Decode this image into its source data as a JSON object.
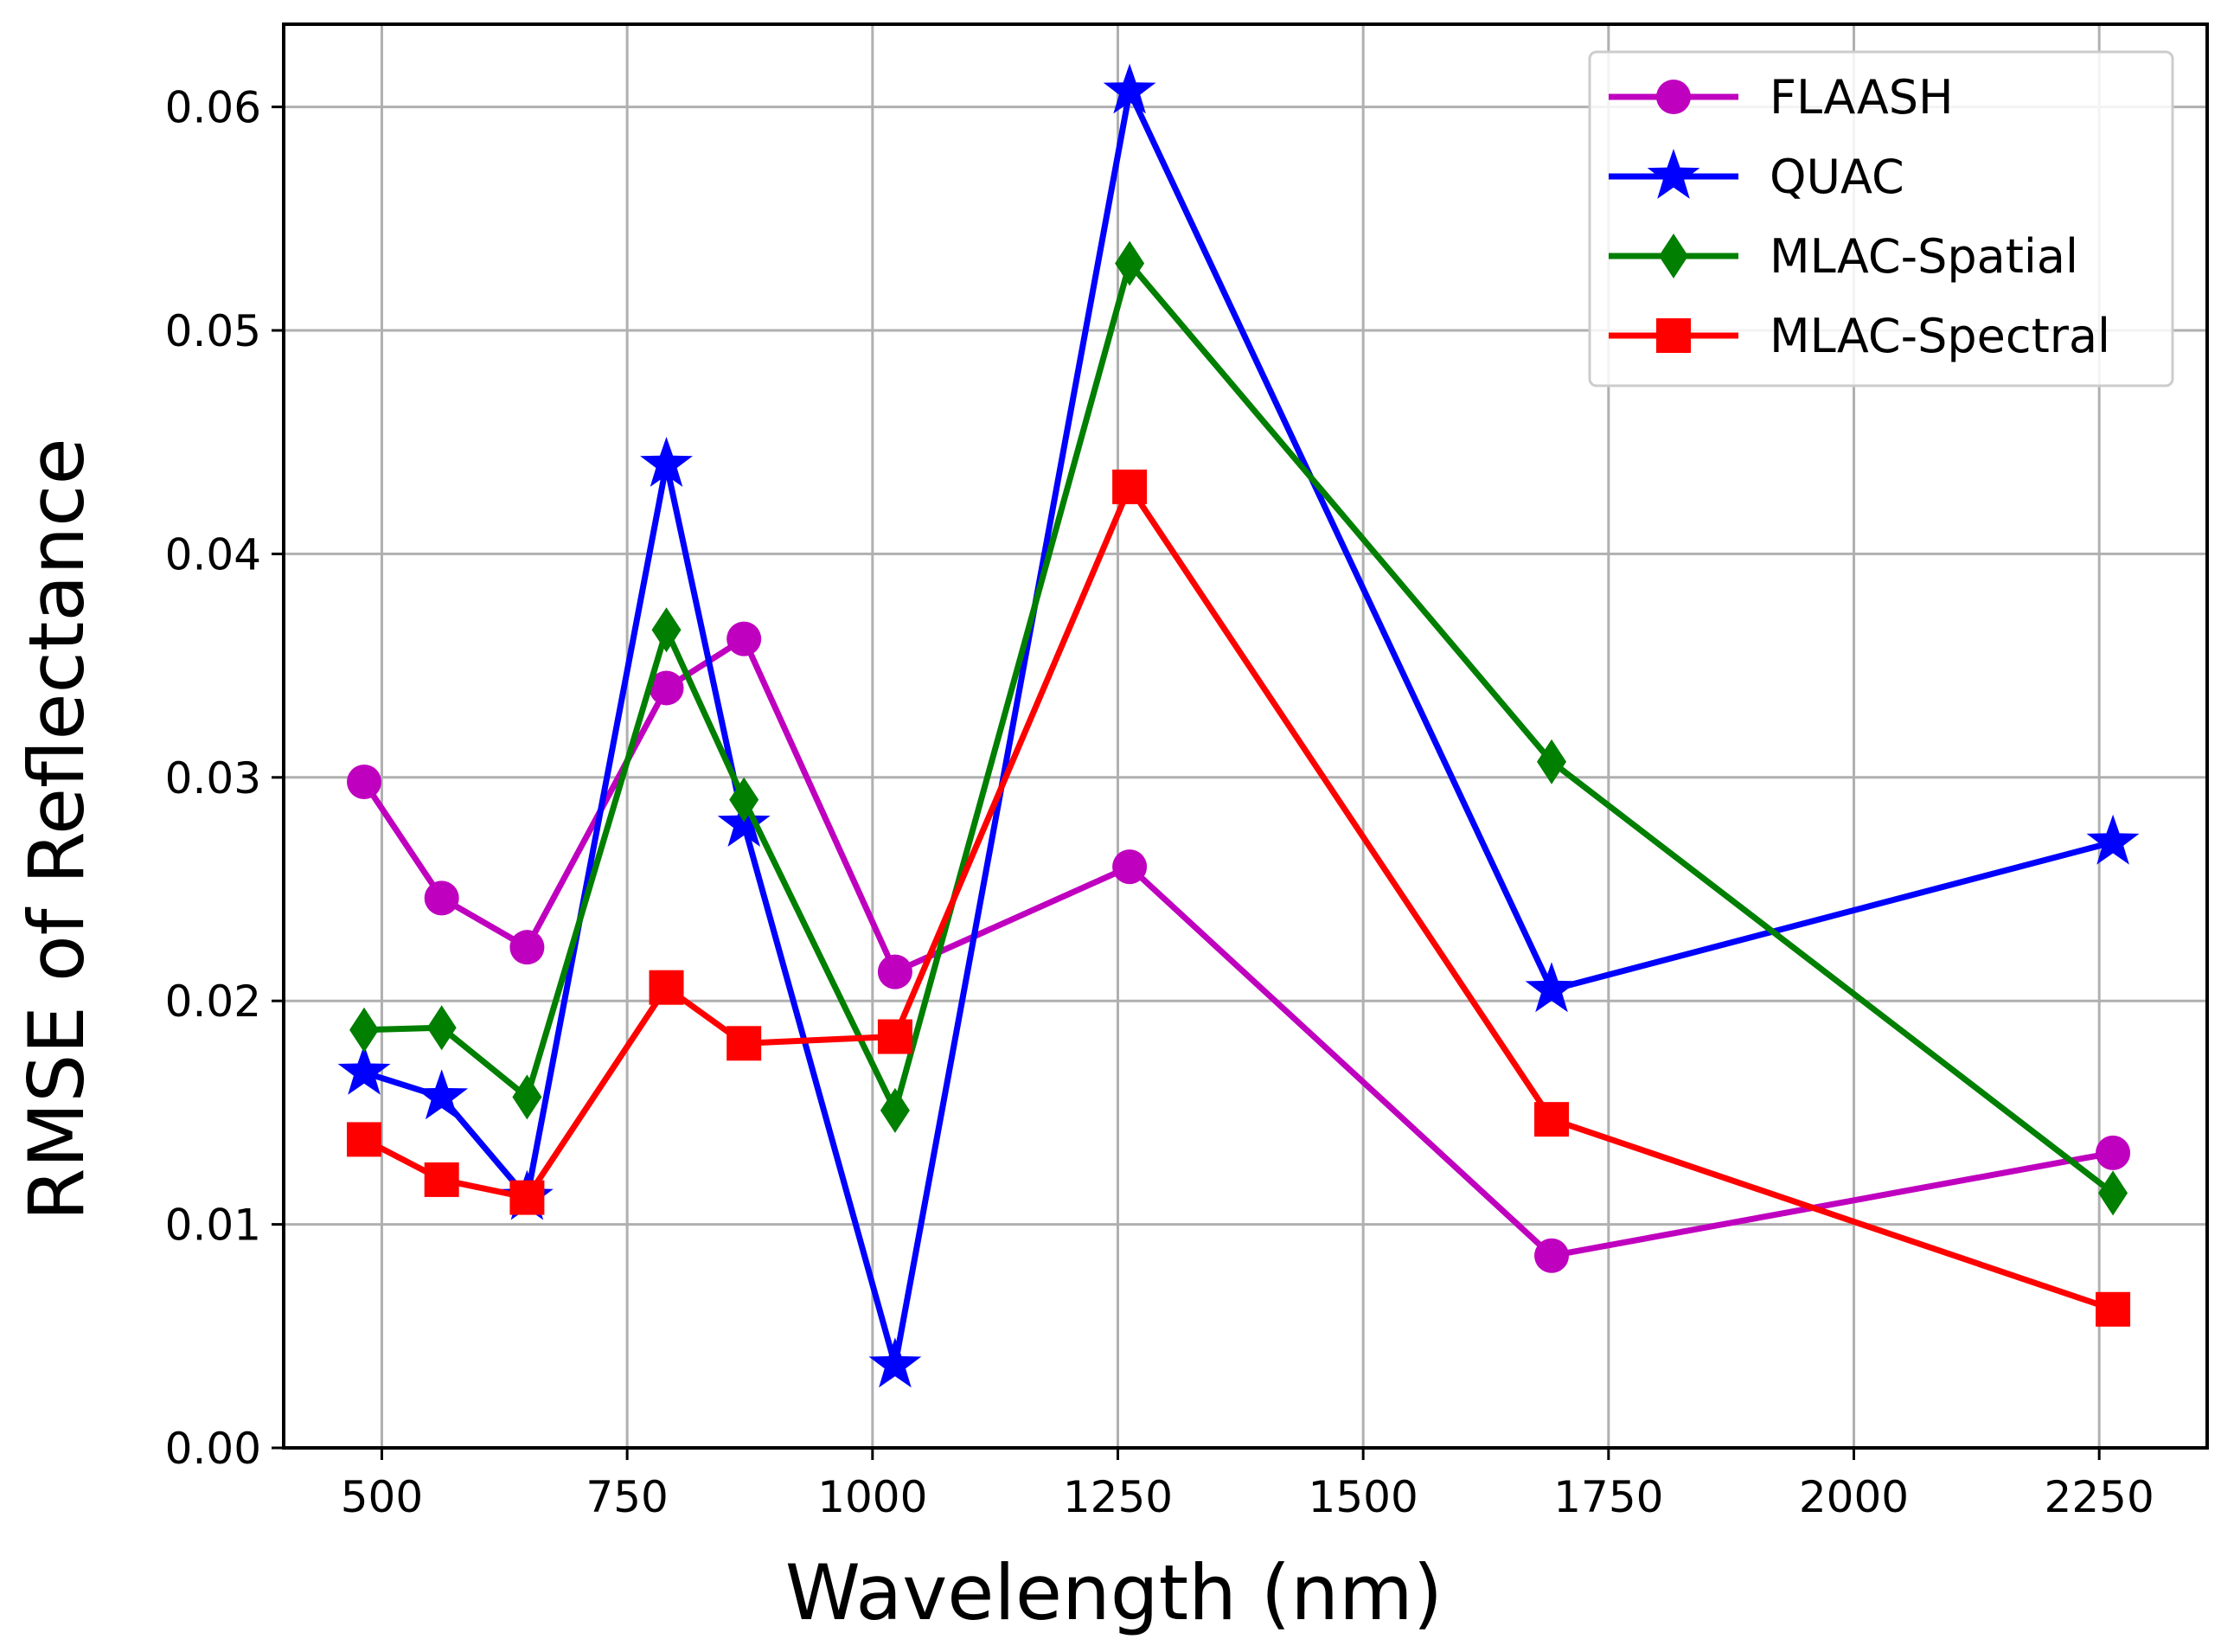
{
  "chart_data": {
    "type": "line",
    "title": "",
    "xlabel": "Wavelength (nm)",
    "ylabel": "RMSE of Reflectance",
    "xlim": [
      400,
      2360
    ],
    "ylim": [
      0,
      0.0637
    ],
    "xticks": [
      500,
      750,
      1000,
      1250,
      1500,
      1750,
      2000,
      2250
    ],
    "xtick_labels": [
      "500",
      "750",
      "1000",
      "1250",
      "1500",
      "1750",
      "2000",
      "2250"
    ],
    "yticks": [
      0.0,
      0.01,
      0.02,
      0.03,
      0.04,
      0.05,
      0.06
    ],
    "ytick_labels": [
      "0.00",
      "0.01",
      "0.02",
      "0.03",
      "0.04",
      "0.05",
      "0.06"
    ],
    "grid": true,
    "legend_position": "top-right",
    "x": [
      482,
      561,
      648,
      790,
      869,
      1023,
      1262,
      1692,
      2264
    ],
    "series": [
      {
        "name": "FLAASH",
        "color": "#bf00bf",
        "marker": "circle",
        "values": [
          0.0298,
          0.0246,
          0.0224,
          0.034,
          0.0362,
          0.0213,
          0.026,
          0.0086,
          0.0132
        ]
      },
      {
        "name": "QUAC",
        "color": "#0000ff",
        "marker": "star",
        "values": [
          0.0168,
          0.0157,
          0.0112,
          0.044,
          0.0279,
          0.0037,
          0.0607,
          0.0205,
          0.0271
        ]
      },
      {
        "name": "MLAC-Spatial",
        "color": "#007f00",
        "marker": "diamond",
        "values": [
          0.0187,
          0.0188,
          0.0157,
          0.0366,
          0.029,
          0.0151,
          0.053,
          0.0307,
          0.0114
        ]
      },
      {
        "name": "MLAC-Spectral",
        "color": "#ff0000",
        "marker": "square",
        "values": [
          0.0138,
          0.012,
          0.0112,
          0.0206,
          0.0181,
          0.0184,
          0.043,
          0.0147,
          0.0062
        ]
      }
    ]
  }
}
